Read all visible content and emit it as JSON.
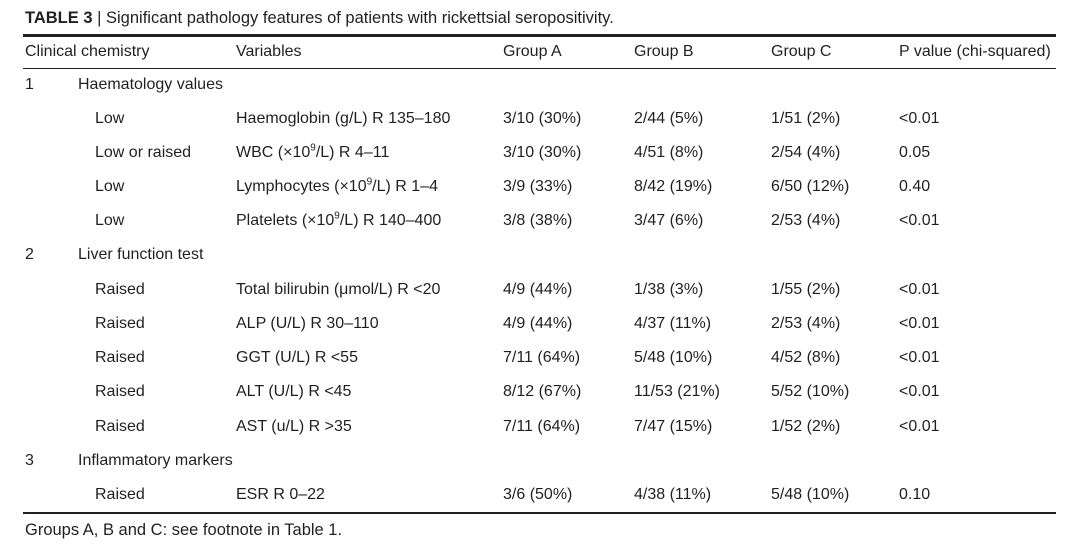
{
  "table": {
    "label": "TABLE 3",
    "separator": "|",
    "caption": "Significant pathology features of patients with rickettsial seropositivity.",
    "headers": [
      "Clinical chemistry",
      "Variables",
      "Group A",
      "Group B",
      "Group C",
      "P value (chi-squared)"
    ],
    "sections": [
      {
        "number": "1",
        "title": "Haematology values",
        "rows": [
          {
            "flag": "Low",
            "var_pre": "Haemoglobin (g/L) R 135–180",
            "var_sup": "",
            "var_post": "",
            "a": "3/10 (30%)",
            "b": "2/44 (5%)",
            "c": "1/51 (2%)",
            "p": "<0.01"
          },
          {
            "flag": "Low or raised",
            "var_pre": "WBC (×10",
            "var_sup": "9",
            "var_post": "/L) R 4–11",
            "a": "3/10 (30%)",
            "b": "4/51 (8%)",
            "c": "2/54 (4%)",
            "p": "0.05"
          },
          {
            "flag": "Low",
            "var_pre": "Lymphocytes (×10",
            "var_sup": "9",
            "var_post": "/L) R 1–4",
            "a": "3/9 (33%)",
            "b": "8/42 (19%)",
            "c": "6/50 (12%)",
            "p": "0.40"
          },
          {
            "flag": "Low",
            "var_pre": "Platelets (×10",
            "var_sup": "9",
            "var_post": "/L) R 140–400",
            "a": "3/8 (38%)",
            "b": "3/47 (6%)",
            "c": "2/53 (4%)",
            "p": "<0.01"
          }
        ]
      },
      {
        "number": "2",
        "title": "Liver function test",
        "rows": [
          {
            "flag": "Raised",
            "var_pre": "Total bilirubin (μmol/L) R <20",
            "var_sup": "",
            "var_post": "",
            "a": "4/9 (44%)",
            "b": "1/38 (3%)",
            "c": "1/55 (2%)",
            "p": "<0.01"
          },
          {
            "flag": "Raised",
            "var_pre": "ALP (U/L) R 30–110",
            "var_sup": "",
            "var_post": "",
            "a": "4/9 (44%)",
            "b": "4/37 (11%)",
            "c": "2/53 (4%)",
            "p": "<0.01"
          },
          {
            "flag": "Raised",
            "var_pre": "GGT (U/L) R <55",
            "var_sup": "",
            "var_post": "",
            "a": "7/11 (64%)",
            "b": "5/48 (10%)",
            "c": "4/52 (8%)",
            "p": "<0.01"
          },
          {
            "flag": "Raised",
            "var_pre": "ALT (U/L) R <45",
            "var_sup": "",
            "var_post": "",
            "a": "8/12 (67%)",
            "b": "11/53 (21%)",
            "c": "5/52 (10%)",
            "p": "<0.01"
          },
          {
            "flag": "Raised",
            "var_pre": "AST (u/L) R >35",
            "var_sup": "",
            "var_post": "",
            "a": "7/11 (64%)",
            "b": "7/47 (15%)",
            "c": "1/52 (2%)",
            "p": "<0.01"
          }
        ]
      },
      {
        "number": "3",
        "title": "Inflammatory markers",
        "rows": [
          {
            "flag": "Raised",
            "var_pre": "ESR R 0–22",
            "var_sup": "",
            "var_post": "",
            "a": "3/6 (50%)",
            "b": "4/38 (11%)",
            "c": "5/48 (10%)",
            "p": "0.10"
          }
        ]
      }
    ],
    "footnote": "Groups A, B and C: see footnote in Table 1."
  }
}
